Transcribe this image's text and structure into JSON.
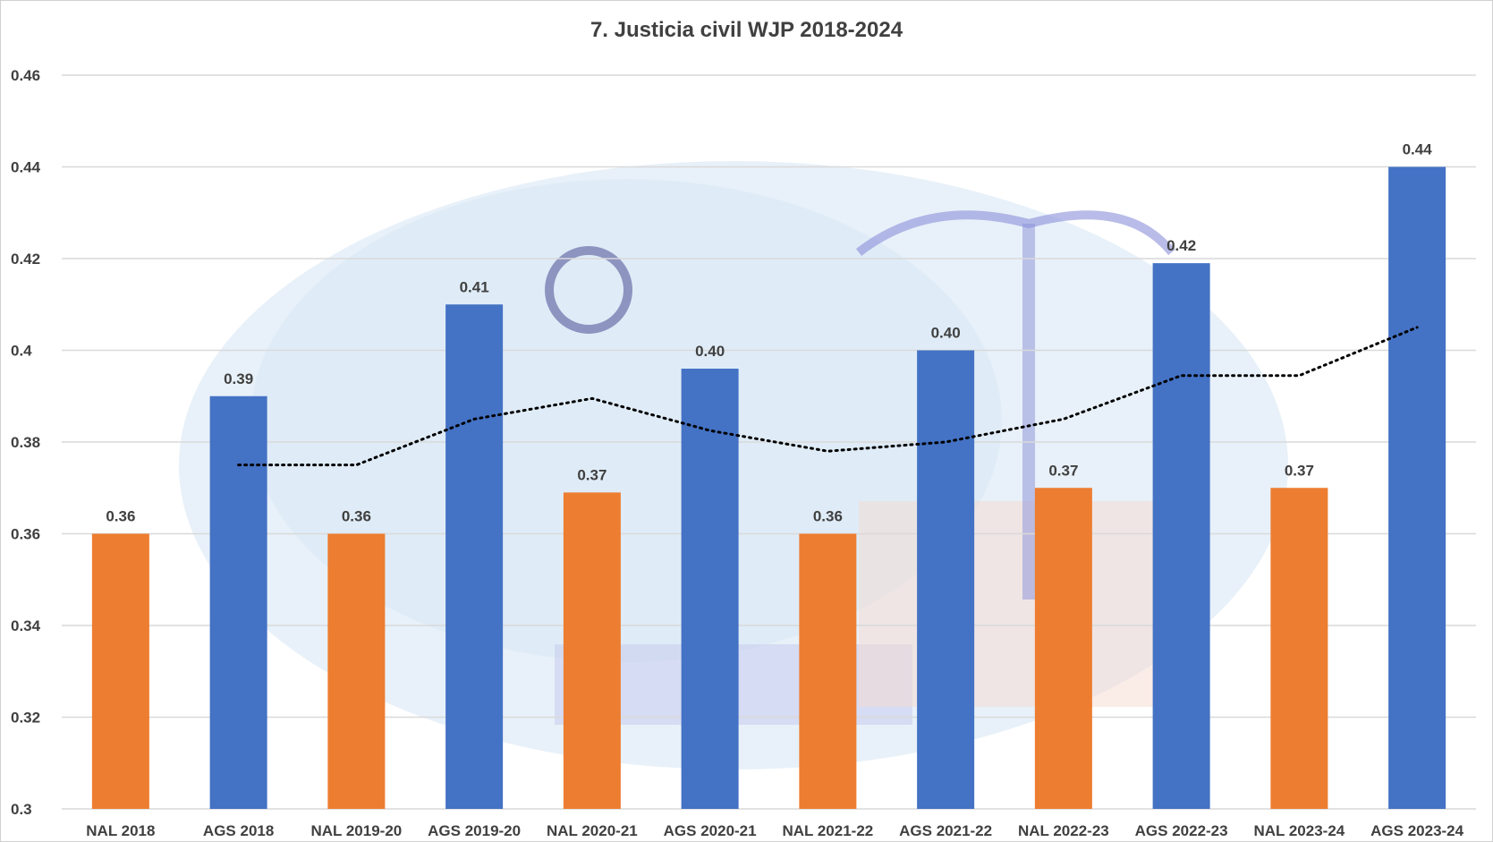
{
  "chart_data": {
    "type": "bar",
    "title": "7. Justicia civil WJP 2018-2024",
    "xlabel": "",
    "ylabel": "",
    "ylim": [
      0.3,
      0.46
    ],
    "yticks": [
      "0.3",
      "0.32",
      "0.34",
      "0.36",
      "0.38",
      "0.4",
      "0.42",
      "0.44",
      "0.46"
    ],
    "grid": true,
    "categories": [
      "NAL 2018",
      "AGS 2018",
      "NAL 2019-20",
      "AGS 2019-20",
      "NAL 2020-21",
      "AGS 2020-21",
      "NAL 2021-22",
      "AGS 2021-22",
      "NAL 2022-23",
      "AGS 2022-23",
      "NAL 2023-24",
      "AGS 2023-24"
    ],
    "values": [
      0.36,
      0.39,
      0.36,
      0.41,
      0.369,
      0.396,
      0.36,
      0.4,
      0.37,
      0.419,
      0.37,
      0.44
    ],
    "data_labels": [
      "0.36",
      "0.39",
      "0.36",
      "0.41",
      "0.37",
      "0.40",
      "0.36",
      "0.40",
      "0.37",
      "0.42",
      "0.37",
      "0.44"
    ],
    "colors": {
      "NAL": "#ED7D31",
      "AGS": "#4472C4"
    },
    "trendline": {
      "type": "2-period moving average",
      "style": "dotted",
      "color": "#000000",
      "values": [
        null,
        0.375,
        0.375,
        0.385,
        0.3895,
        0.3825,
        0.378,
        0.38,
        0.385,
        0.3945,
        0.3945,
        0.405
      ]
    }
  }
}
